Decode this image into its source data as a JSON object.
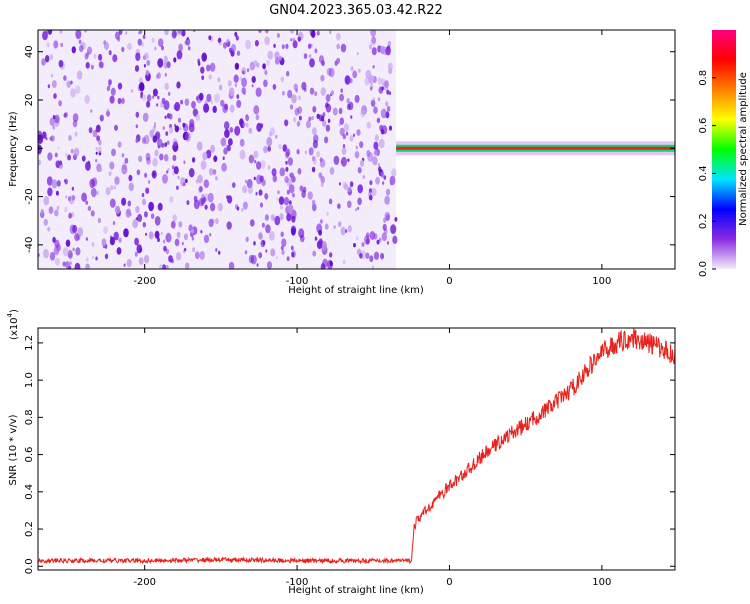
{
  "title": "GN04.2023.365.03.42.R22",
  "chart_data": [
    {
      "type": "heatmap",
      "xlabel": "Height of straight line (km)",
      "ylabel": "Frequency (Hz)",
      "xlim": [
        -270,
        148
      ],
      "ylim": [
        -50,
        49
      ],
      "x_ticks": [
        -200,
        -100,
        0,
        100
      ],
      "x_tick_labels": [
        "-200",
        "-100",
        "0",
        "100"
      ],
      "y_ticks": [
        -40,
        -20,
        0,
        20,
        40
      ],
      "y_tick_labels": [
        "-40",
        "-20",
        "0",
        "20",
        "40"
      ],
      "noise_region_x": [
        -270,
        -35
      ],
      "signal_line": {
        "frequency": 0,
        "x_start": -35,
        "x_end": 148
      },
      "colorbar": {
        "label": "Normalized spectral amplitude",
        "range": [
          0,
          1
        ],
        "ticks": [
          0.0,
          0.2,
          0.4,
          0.6,
          0.8
        ],
        "tick_labels": [
          "0.0",
          "0.2",
          "0.4",
          "0.6",
          "0.8"
        ],
        "colors": [
          "#f3edfb",
          "#8a2be2",
          "#0000ff",
          "#00e5ff",
          "#00ff00",
          "#ffff00",
          "#ff8000",
          "#ff0000",
          "#ff007f"
        ]
      },
      "color": "#6a0dd6"
    },
    {
      "type": "line",
      "xlabel": "Height of straight line (km)",
      "ylabel": "SNR (10 * v/v)",
      "y_scale_label": "(x10",
      "y_scale_exp": "4",
      "y_scale_close": ")",
      "xlim": [
        -270,
        148
      ],
      "ylim": [
        -0.02,
        1.28
      ],
      "x_ticks": [
        -200,
        -100,
        0,
        100
      ],
      "x_tick_labels": [
        "-200",
        "-100",
        "0",
        "100"
      ],
      "y_ticks": [
        0.0,
        0.2,
        0.4,
        0.6,
        0.8,
        1.0,
        1.2
      ],
      "y_tick_labels": [
        "0.0",
        "0.2",
        "0.4",
        "0.6",
        "0.8",
        "1.0",
        "1.2"
      ],
      "series": [
        {
          "color": "#e8211b",
          "x": [
            -270,
            -200,
            -150,
            -100,
            -50,
            -25,
            -23,
            -20,
            -15,
            -10,
            0,
            10,
            20,
            30,
            40,
            50,
            60,
            70,
            80,
            90,
            100,
            110,
            120,
            130,
            140,
            148
          ],
          "y": [
            0.03,
            0.03,
            0.035,
            0.03,
            0.03,
            0.03,
            0.22,
            0.26,
            0.3,
            0.35,
            0.43,
            0.5,
            0.58,
            0.65,
            0.71,
            0.76,
            0.82,
            0.88,
            0.95,
            1.05,
            1.15,
            1.2,
            1.23,
            1.2,
            1.17,
            1.13
          ]
        }
      ]
    }
  ]
}
